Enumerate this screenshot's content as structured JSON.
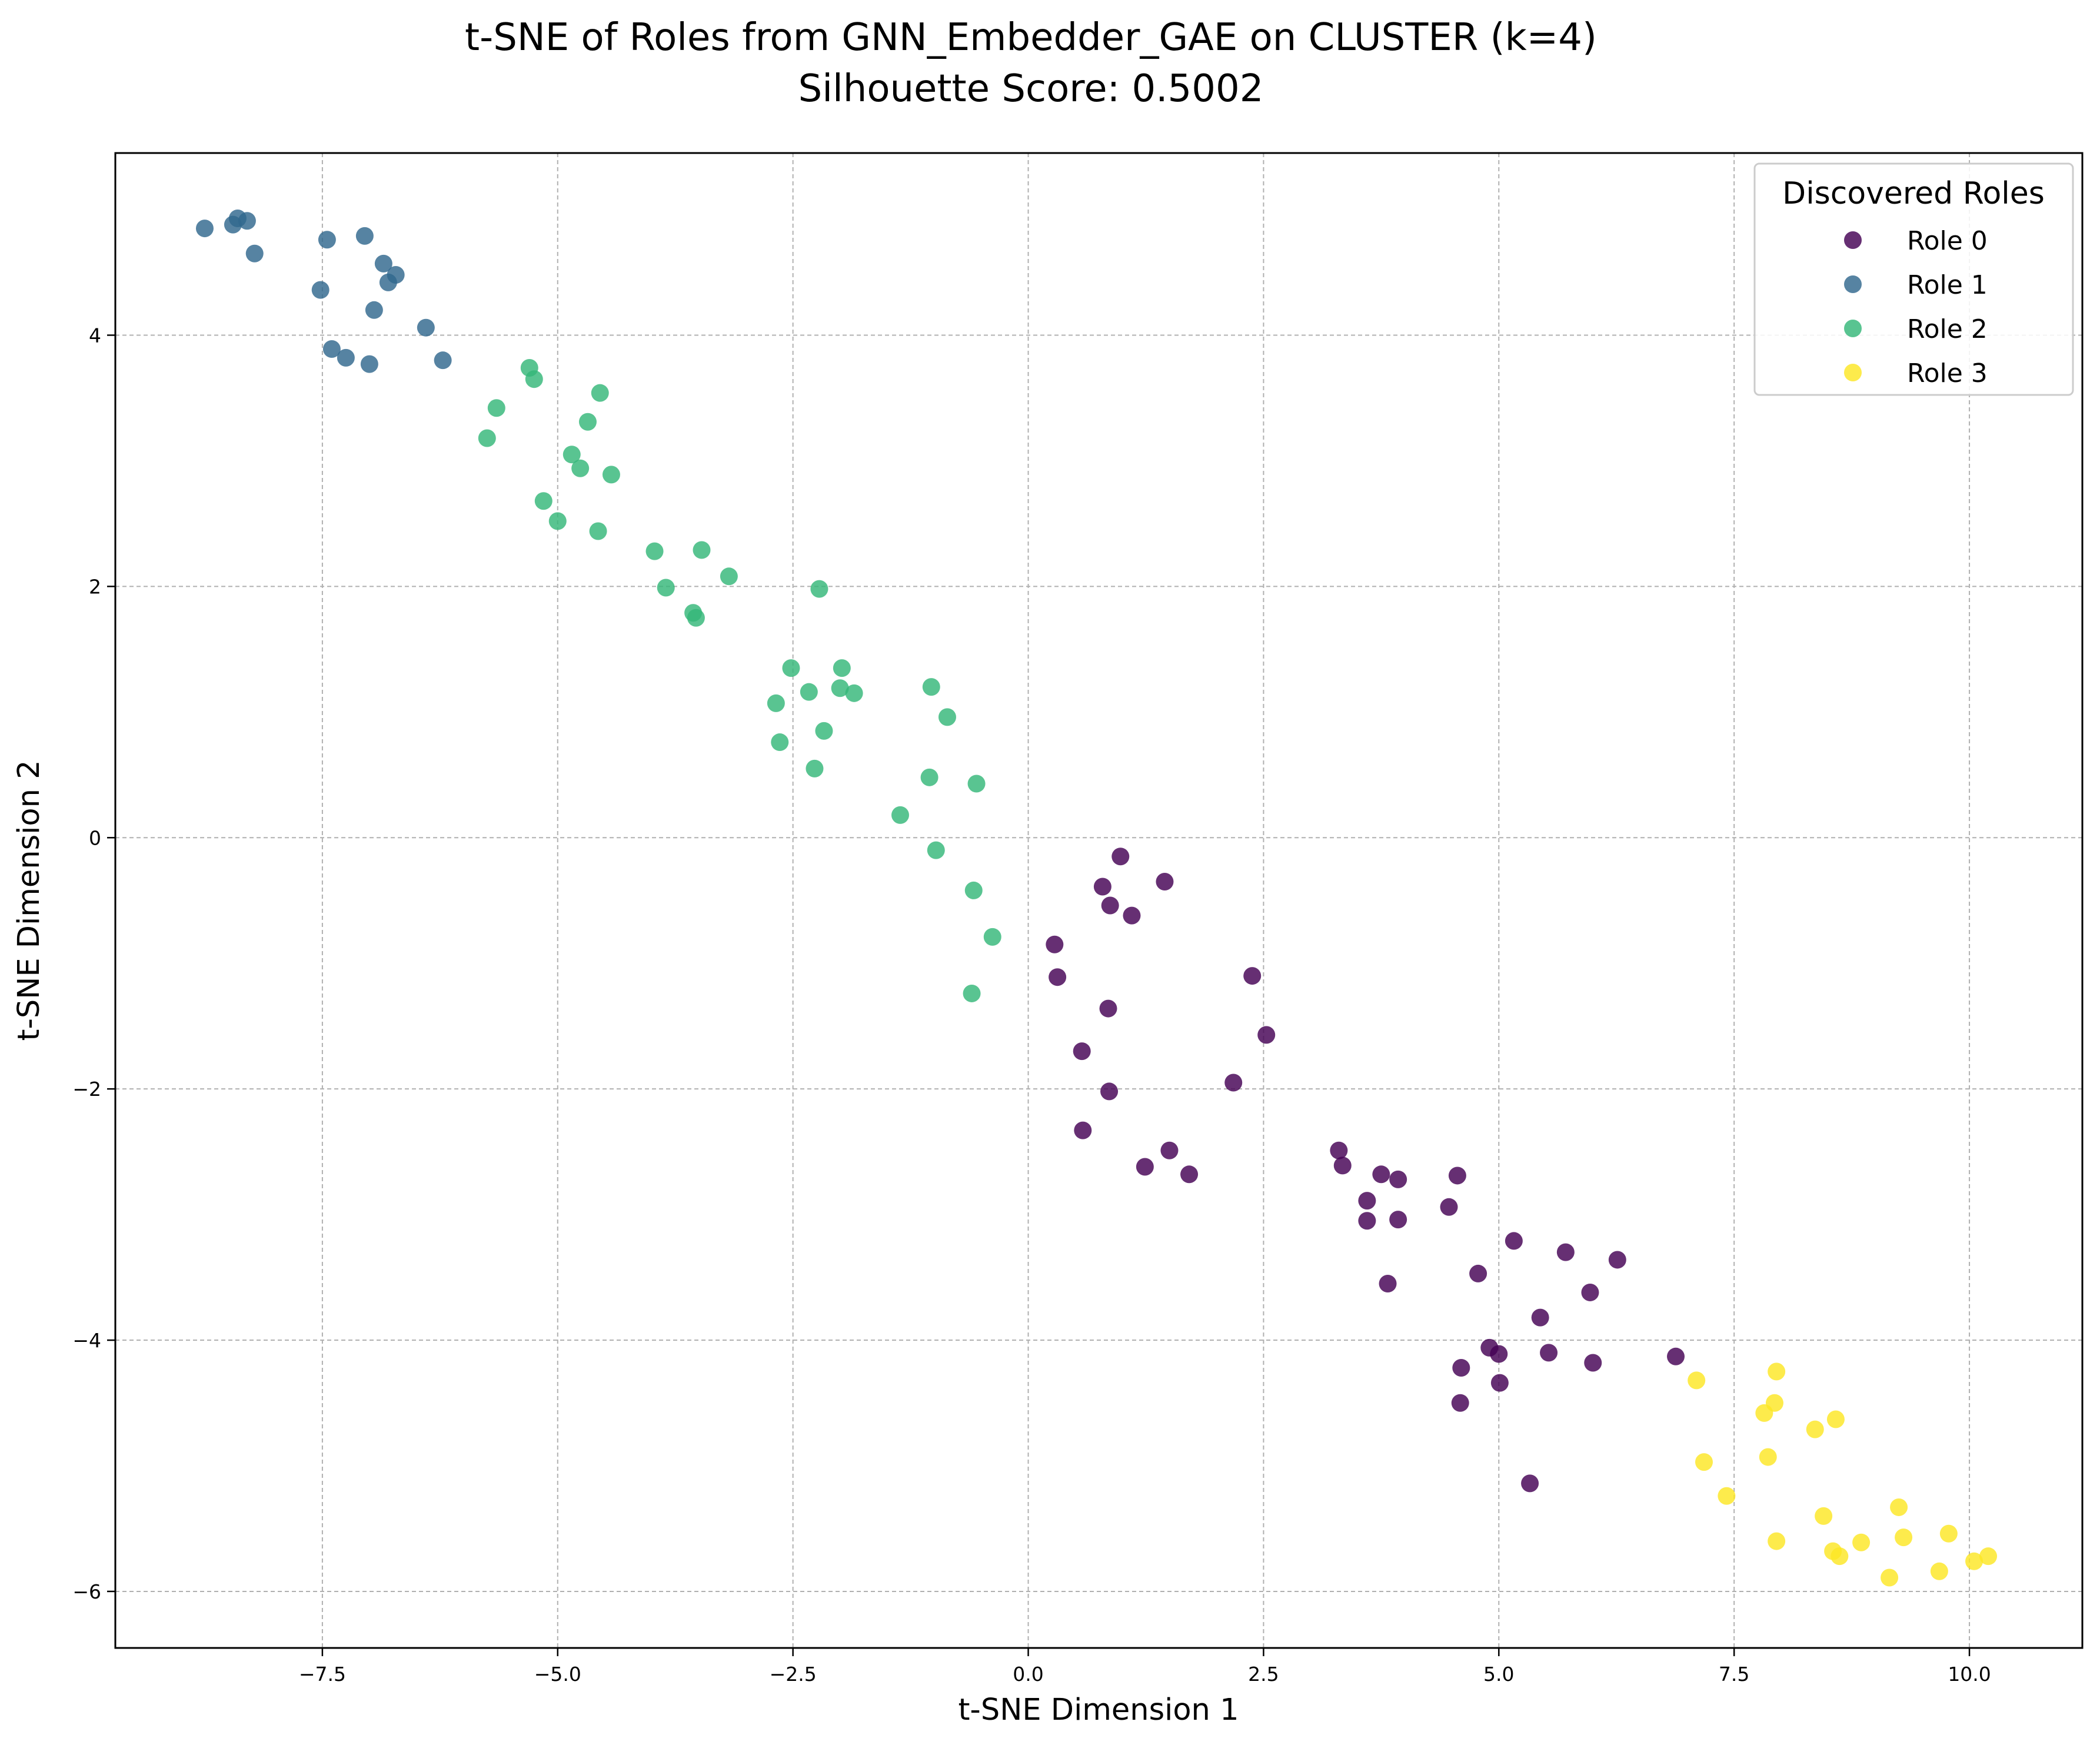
{
  "chart_data": {
    "type": "scatter",
    "title": "t-SNE of Roles from GNN_Embedder_GAE on CLUSTER (k=4)",
    "subtitle": "Silhouette Score: 0.5002",
    "xlabel": "t-SNE Dimension 1",
    "ylabel": "t-SNE Dimension 2",
    "xlim": [
      -9.7,
      11.2
    ],
    "ylim": [
      -6.45,
      5.45
    ],
    "xticks": [
      -7.5,
      -5.0,
      -2.5,
      0.0,
      2.5,
      5.0,
      7.5,
      10.0
    ],
    "xtick_labels": [
      "−7.5",
      "−5.0",
      "−2.5",
      "0.0",
      "2.5",
      "5.0",
      "7.5",
      "10.0"
    ],
    "yticks": [
      -6,
      -4,
      -2,
      0,
      2,
      4
    ],
    "ytick_labels": [
      "−6",
      "−4",
      "−2",
      "0",
      "2",
      "4"
    ],
    "grid": true,
    "legend": {
      "title": "Discovered Roles",
      "position": "top-right"
    },
    "series": [
      {
        "name": "Role 0",
        "color": "#440154",
        "points": [
          [
            0.98,
            -0.15
          ],
          [
            1.45,
            -0.35
          ],
          [
            0.79,
            -0.39
          ],
          [
            0.87,
            -0.54
          ],
          [
            1.1,
            -0.62
          ],
          [
            0.28,
            -0.85
          ],
          [
            0.31,
            -1.11
          ],
          [
            2.38,
            -1.1
          ],
          [
            0.85,
            -1.36
          ],
          [
            2.53,
            -1.57
          ],
          [
            0.57,
            -1.7
          ],
          [
            2.18,
            -1.95
          ],
          [
            0.86,
            -2.02
          ],
          [
            0.58,
            -2.33
          ],
          [
            1.5,
            -2.49
          ],
          [
            1.24,
            -2.62
          ],
          [
            1.71,
            -2.68
          ],
          [
            3.3,
            -2.49
          ],
          [
            3.34,
            -2.61
          ],
          [
            3.75,
            -2.68
          ],
          [
            3.93,
            -2.72
          ],
          [
            4.56,
            -2.69
          ],
          [
            3.6,
            -2.89
          ],
          [
            4.47,
            -2.94
          ],
          [
            3.6,
            -3.05
          ],
          [
            3.93,
            -3.04
          ],
          [
            5.16,
            -3.21
          ],
          [
            5.71,
            -3.3
          ],
          [
            6.26,
            -3.36
          ],
          [
            4.78,
            -3.47
          ],
          [
            3.82,
            -3.55
          ],
          [
            5.97,
            -3.62
          ],
          [
            5.44,
            -3.82
          ],
          [
            4.9,
            -4.06
          ],
          [
            5.0,
            -4.11
          ],
          [
            5.53,
            -4.1
          ],
          [
            6.0,
            -4.18
          ],
          [
            4.6,
            -4.22
          ],
          [
            6.88,
            -4.13
          ],
          [
            5.01,
            -4.34
          ],
          [
            4.59,
            -4.5
          ],
          [
            5.33,
            -5.14
          ]
        ]
      },
      {
        "name": "Role 1",
        "color": "#31688e",
        "points": [
          [
            -8.75,
            4.85
          ],
          [
            -8.4,
            4.93
          ],
          [
            -8.45,
            4.88
          ],
          [
            -8.3,
            4.91
          ],
          [
            -8.22,
            4.65
          ],
          [
            -7.45,
            4.76
          ],
          [
            -7.05,
            4.79
          ],
          [
            -6.85,
            4.57
          ],
          [
            -6.72,
            4.48
          ],
          [
            -6.8,
            4.42
          ],
          [
            -7.52,
            4.36
          ],
          [
            -6.95,
            4.2
          ],
          [
            -6.4,
            4.06
          ],
          [
            -7.4,
            3.89
          ],
          [
            -7.25,
            3.82
          ],
          [
            -7.0,
            3.77
          ],
          [
            -6.22,
            3.8
          ]
        ]
      },
      {
        "name": "Role 2",
        "color": "#35b779",
        "points": [
          [
            -5.3,
            3.74
          ],
          [
            -5.25,
            3.65
          ],
          [
            -4.55,
            3.54
          ],
          [
            -5.65,
            3.42
          ],
          [
            -4.68,
            3.31
          ],
          [
            -5.75,
            3.18
          ],
          [
            -4.85,
            3.05
          ],
          [
            -4.76,
            2.94
          ],
          [
            -4.43,
            2.89
          ],
          [
            -5.15,
            2.68
          ],
          [
            -5.0,
            2.52
          ],
          [
            -4.57,
            2.44
          ],
          [
            -3.97,
            2.28
          ],
          [
            -3.47,
            2.29
          ],
          [
            -3.18,
            2.08
          ],
          [
            -2.22,
            1.98
          ],
          [
            -3.85,
            1.99
          ],
          [
            -3.56,
            1.79
          ],
          [
            -3.53,
            1.75
          ],
          [
            -2.52,
            1.35
          ],
          [
            -1.98,
            1.35
          ],
          [
            -2.33,
            1.16
          ],
          [
            -2.0,
            1.19
          ],
          [
            -1.85,
            1.15
          ],
          [
            -1.03,
            1.2
          ],
          [
            -2.68,
            1.07
          ],
          [
            -0.86,
            0.96
          ],
          [
            -2.17,
            0.85
          ],
          [
            -2.64,
            0.76
          ],
          [
            -2.27,
            0.55
          ],
          [
            -1.05,
            0.48
          ],
          [
            -0.55,
            0.43
          ],
          [
            -1.36,
            0.18
          ],
          [
            -0.98,
            -0.1
          ],
          [
            -0.58,
            -0.42
          ],
          [
            -0.38,
            -0.79
          ],
          [
            -0.6,
            -1.24
          ]
        ]
      },
      {
        "name": "Role 3",
        "color": "#fde725",
        "points": [
          [
            7.1,
            -4.32
          ],
          [
            7.95,
            -4.25
          ],
          [
            7.93,
            -4.5
          ],
          [
            7.82,
            -4.58
          ],
          [
            8.58,
            -4.63
          ],
          [
            8.36,
            -4.71
          ],
          [
            7.86,
            -4.93
          ],
          [
            7.18,
            -4.97
          ],
          [
            7.42,
            -5.24
          ],
          [
            9.25,
            -5.33
          ],
          [
            8.45,
            -5.4
          ],
          [
            9.78,
            -5.54
          ],
          [
            9.3,
            -5.57
          ],
          [
            7.95,
            -5.6
          ],
          [
            8.85,
            -5.61
          ],
          [
            8.55,
            -5.68
          ],
          [
            8.62,
            -5.72
          ],
          [
            10.2,
            -5.72
          ],
          [
            10.05,
            -5.76
          ],
          [
            9.68,
            -5.84
          ],
          [
            9.15,
            -5.89
          ]
        ]
      }
    ]
  }
}
